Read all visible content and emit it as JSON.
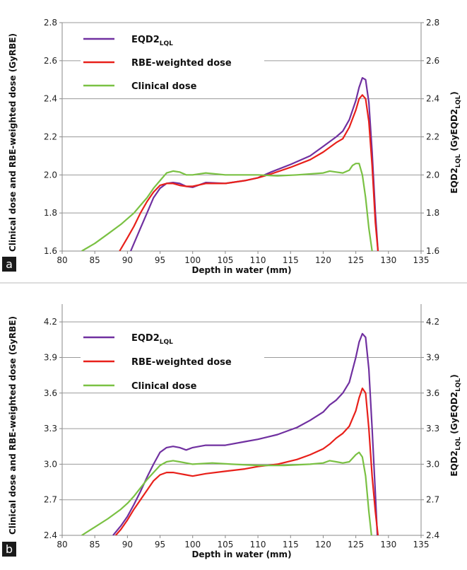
{
  "chart_data": [
    {
      "panel": "a",
      "type": "line",
      "xlabel": "Depth in water (mm)",
      "ylabel_left": "Clinical dose and RBE-weighted dose (GyRBE)",
      "ylabel_right_main": "EQD2",
      "ylabel_right_sub": "LQL",
      "ylabel_right_tail_main": " (GyEQD2",
      "ylabel_right_tail_sub": "LQL",
      "ylabel_right_close": ")",
      "xlim": [
        80,
        135
      ],
      "ylim": [
        1.6,
        2.8
      ],
      "xticks": [
        80,
        85,
        90,
        95,
        100,
        105,
        110,
        115,
        120,
        125,
        130,
        135
      ],
      "yticks": [
        "1.6",
        "1.8",
        "2.0",
        "2.2",
        "2.4",
        "2.6",
        "2.8"
      ],
      "grid": "horizontal",
      "legend_position": "top-left",
      "series": [
        {
          "name_main": "EQD2",
          "name_sub": "LQL",
          "color": "#7030a0",
          "x": [
            90.5,
            92,
            93,
            94,
            95,
            96,
            97,
            98,
            99,
            100,
            102,
            105,
            108,
            110,
            112,
            115,
            118,
            120,
            122,
            123,
            124,
            125,
            125.5,
            126,
            126.5,
            127,
            127.5,
            128,
            128.4
          ],
          "y": [
            1.6,
            1.72,
            1.8,
            1.88,
            1.93,
            1.955,
            1.96,
            1.955,
            1.94,
            1.935,
            1.96,
            1.955,
            1.97,
            1.985,
            2.015,
            2.055,
            2.1,
            2.15,
            2.2,
            2.23,
            2.29,
            2.39,
            2.46,
            2.51,
            2.5,
            2.38,
            2.12,
            1.8,
            1.6
          ]
        },
        {
          "name": "RBE-weighted dose",
          "color": "#e8201a",
          "x": [
            88.8,
            90,
            91,
            92,
            93,
            94,
            95,
            96,
            97,
            98,
            99,
            100,
            102,
            105,
            108,
            110,
            112,
            115,
            118,
            120,
            122,
            123,
            124,
            125,
            125.5,
            126,
            126.5,
            127,
            127.5,
            128,
            128.4
          ],
          "y": [
            1.6,
            1.67,
            1.73,
            1.8,
            1.86,
            1.91,
            1.945,
            1.955,
            1.955,
            1.945,
            1.94,
            1.94,
            1.955,
            1.955,
            1.97,
            1.985,
            2.005,
            2.04,
            2.08,
            2.12,
            2.17,
            2.19,
            2.25,
            2.34,
            2.4,
            2.42,
            2.4,
            2.28,
            2.05,
            1.75,
            1.6
          ]
        },
        {
          "name": "Clinical dose",
          "color": "#7ac143",
          "x": [
            83,
            85,
            87,
            89,
            91,
            92,
            93,
            94,
            95,
            96,
            97,
            98,
            99,
            100,
            102,
            105,
            108,
            110,
            113,
            116,
            118,
            120,
            121,
            122,
            123,
            124,
            124.5,
            125,
            125.5,
            126,
            126.5,
            127,
            127.5
          ],
          "y": [
            1.6,
            1.64,
            1.69,
            1.74,
            1.8,
            1.84,
            1.88,
            1.93,
            1.97,
            2.01,
            2.02,
            2.015,
            2.0,
            2.0,
            2.01,
            2.0,
            2.0,
            2.0,
            1.995,
            2.0,
            2.005,
            2.01,
            2.02,
            2.015,
            2.01,
            2.025,
            2.05,
            2.06,
            2.06,
            2.0,
            1.88,
            1.72,
            1.6
          ]
        }
      ]
    },
    {
      "panel": "b",
      "type": "line",
      "xlabel": "Depth in water (mm)",
      "ylabel_left": "Clinical dose and RBE-weighted dose (GyRBE)",
      "ylabel_right_main": "EQD2",
      "ylabel_right_sub": "LQL",
      "ylabel_right_tail_main": " (GyEQD2",
      "ylabel_right_tail_sub": "LQL",
      "ylabel_right_close": ")",
      "xlim": [
        80,
        135
      ],
      "ylim": [
        2.4,
        4.35
      ],
      "xticks": [
        80,
        85,
        90,
        95,
        100,
        105,
        110,
        115,
        120,
        125,
        130,
        135
      ],
      "yticks": [
        "2.4",
        "2.7",
        "3.0",
        "3.3",
        "3.6",
        "3.9",
        "4.2"
      ],
      "grid": "horizontal",
      "legend_position": "top-left",
      "series": [
        {
          "name_main": "EQD2",
          "name_sub": "LQL",
          "color": "#7030a0",
          "x": [
            87.8,
            89,
            90,
            91,
            92,
            93,
            94,
            95,
            96,
            97,
            98,
            99,
            100,
            102,
            105,
            108,
            110,
            113,
            116,
            118,
            120,
            121,
            122,
            123,
            124,
            125,
            125.5,
            126,
            126.5,
            127,
            127.5,
            128,
            128.3
          ],
          "y": [
            2.4,
            2.48,
            2.56,
            2.66,
            2.77,
            2.89,
            3.0,
            3.1,
            3.14,
            3.15,
            3.14,
            3.12,
            3.14,
            3.16,
            3.16,
            3.19,
            3.21,
            3.25,
            3.31,
            3.37,
            3.44,
            3.5,
            3.54,
            3.6,
            3.69,
            3.9,
            4.03,
            4.1,
            4.07,
            3.8,
            3.3,
            2.75,
            2.4
          ]
        },
        {
          "name": "RBE-weighted dose",
          "color": "#e8201a",
          "x": [
            88.2,
            89,
            90,
            91,
            92,
            93,
            94,
            95,
            96,
            97,
            98,
            99,
            100,
            102,
            105,
            108,
            110,
            113,
            116,
            118,
            120,
            121,
            122,
            123,
            124,
            125,
            125.5,
            126,
            126.5,
            127,
            127.5,
            128,
            128.4
          ],
          "y": [
            2.4,
            2.45,
            2.53,
            2.62,
            2.7,
            2.78,
            2.86,
            2.91,
            2.93,
            2.93,
            2.92,
            2.91,
            2.9,
            2.92,
            2.94,
            2.96,
            2.98,
            3.0,
            3.04,
            3.08,
            3.13,
            3.17,
            3.22,
            3.26,
            3.32,
            3.45,
            3.56,
            3.64,
            3.6,
            3.3,
            2.9,
            2.6,
            2.4
          ]
        },
        {
          "name": "Clinical dose",
          "color": "#7ac143",
          "x": [
            83,
            85,
            87,
            89,
            90,
            91,
            92,
            93,
            94,
            95,
            96,
            97,
            98,
            100,
            103,
            106,
            110,
            114,
            118,
            120,
            121,
            122,
            123,
            124,
            124.5,
            125,
            125.5,
            126,
            126.5,
            127,
            127.4
          ],
          "y": [
            2.4,
            2.47,
            2.54,
            2.62,
            2.67,
            2.73,
            2.8,
            2.87,
            2.93,
            2.99,
            3.02,
            3.03,
            3.02,
            3.0,
            3.01,
            3.0,
            2.99,
            2.99,
            3.0,
            3.01,
            3.03,
            3.02,
            3.01,
            3.02,
            3.05,
            3.08,
            3.1,
            3.06,
            2.9,
            2.6,
            2.4
          ]
        }
      ]
    }
  ]
}
